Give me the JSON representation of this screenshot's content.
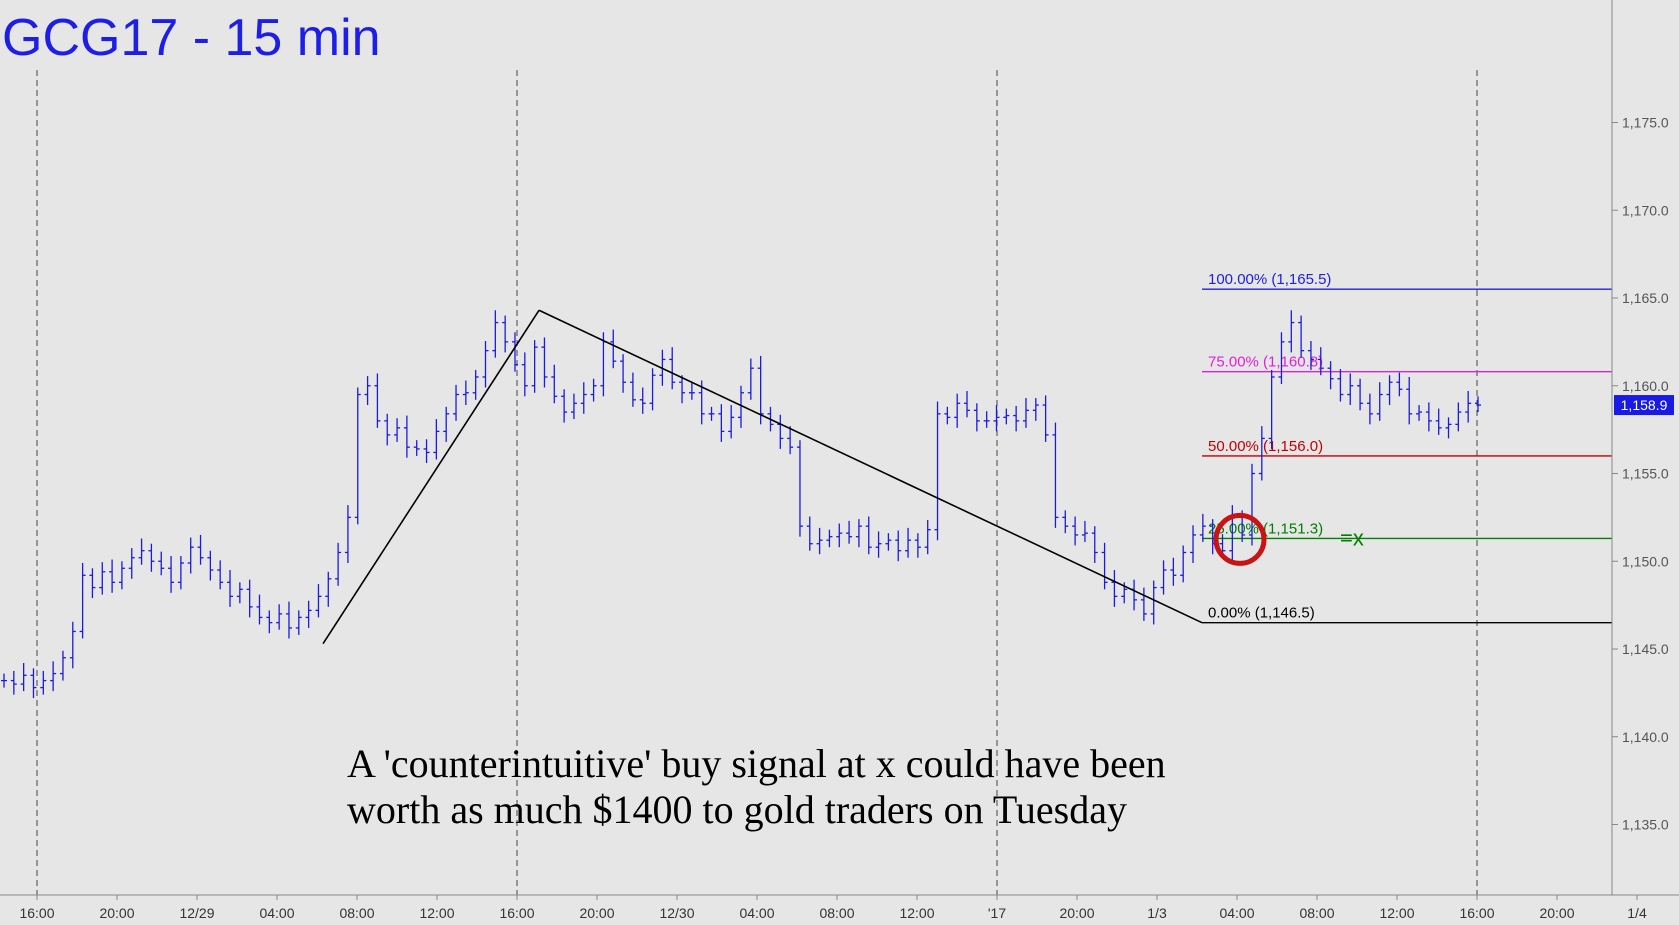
{
  "chart_data": {
    "type": "line",
    "title": "GCG17 - 15 min",
    "ylim": [
      1130,
      1180
    ],
    "y_ticks": [
      1135.0,
      1140.0,
      1145.0,
      1150.0,
      1155.0,
      1160.0,
      1165.0,
      1170.0,
      1175.0
    ],
    "y_tick_labels": [
      "1,135.0",
      "1,140.0",
      "1,145.0",
      "1,150.0",
      "1,155.0",
      "1,160.0",
      "1,165.0",
      "1,170.0",
      "1,175.0"
    ],
    "x_ticks": [
      "16:00",
      "20:00",
      "12/29",
      "04:00",
      "08:00",
      "12:00",
      "16:00",
      "20:00",
      "12/30",
      "04:00",
      "08:00",
      "12:00",
      "'17",
      "20:00",
      "1/3",
      "04:00",
      "08:00",
      "12:00",
      "16:00",
      "20:00",
      "1/4"
    ],
    "session_breaks": [
      "12/28 16:00",
      "12/29 16:00",
      "'17 16:00",
      "1/3 16:00"
    ],
    "last_price": {
      "value": 1158.9,
      "label": "1,158.9"
    },
    "series": [
      {
        "values": [
          1143.2,
          1143.0,
          1143.5,
          1142.8,
          1143.2,
          1143.6,
          1144.5,
          1146.0,
          1149.2,
          1148.5,
          1149.4,
          1148.8,
          1149.6,
          1150.2,
          1150.6,
          1150.0,
          1149.6,
          1148.8,
          1149.9,
          1150.8,
          1150.2,
          1149.5,
          1148.8,
          1148.0,
          1148.4,
          1147.4,
          1146.8,
          1146.5,
          1147.0,
          1146.2,
          1146.8,
          1147.2,
          1148.0,
          1149.0,
          1150.5,
          1152.5,
          1159.5,
          1160.0,
          1158.0,
          1157.2,
          1157.6,
          1156.5,
          1156.4,
          1156.2,
          1157.4,
          1158.4,
          1159.5,
          1159.6,
          1160.5,
          1162.0,
          1163.6,
          1162.5,
          1161.2,
          1160.0,
          1162.2,
          1160.5,
          1159.4,
          1158.5,
          1159.0,
          1159.5,
          1160.0,
          1162.5,
          1161.4,
          1160.2,
          1159.2,
          1159.0,
          1160.6,
          1161.5,
          1160.2,
          1159.6,
          1159.6,
          1158.4,
          1158.4,
          1157.4,
          1158.2,
          1159.6,
          1161.0,
          1158.4,
          1157.8,
          1157.0,
          1156.5,
          1152.0,
          1151.0,
          1151.2,
          1151.4,
          1151.6,
          1151.4,
          1152.0,
          1150.8,
          1151.0,
          1151.2,
          1150.6,
          1151.2,
          1150.8,
          1151.8,
          1158.4,
          1158.2,
          1159.0,
          1158.6,
          1158.0,
          1158.0,
          1158.2,
          1158.3,
          1158.0,
          1158.6,
          1158.9,
          1157.2,
          1152.5,
          1152.0,
          1151.5,
          1151.6,
          1150.5,
          1148.8,
          1148.0,
          1148.4,
          1147.8,
          1147.0,
          1148.5,
          1149.5,
          1149.2,
          1150.5,
          1151.5,
          1152.0,
          1151.0,
          1150.6,
          1152.5,
          1151.5,
          1155.0,
          1157.0,
          1160.5,
          1162.5,
          1163.6,
          1162.0,
          1161.5,
          1161.0,
          1160.4,
          1159.5,
          1160.0,
          1159.0,
          1158.4,
          1159.5,
          1160.2,
          1159.8,
          1158.4,
          1158.5,
          1158.0,
          1157.6,
          1157.8,
          1158.5,
          1159.0,
          1158.9
        ]
      }
    ],
    "swing_lines": [
      {
        "from": {
          "label": "12/29 06:30",
          "y": 1145.3
        },
        "to": {
          "label": "12/29 18:30",
          "y": 1164.3
        }
      },
      {
        "from": {
          "label": "12/29 18:30",
          "y": 1164.3
        },
        "to": {
          "label": "1/3 04:30",
          "y": 1146.5
        }
      }
    ],
    "fib_levels": [
      {
        "label": "100.00% (1,165.5)",
        "value": 1165.5,
        "color": "#2020e0"
      },
      {
        "label": "75.00% (1,160.8)",
        "value": 1160.8,
        "color": "#e020e0"
      },
      {
        "label": "50.00% (1,156.0)",
        "value": 1156.0,
        "color": "#c00000"
      },
      {
        "label": "25.00% (1,151.3)",
        "value": 1151.3,
        "color": "#008000"
      },
      {
        "label": "0.00% (1,146.5)",
        "value": 1146.5,
        "color": "#000000"
      }
    ],
    "marker": {
      "label": "=x",
      "color": "#008000",
      "circle_color": "#c81414"
    },
    "annotation": [
      "A 'counterintuitive' buy signal at x could have been",
      "worth as much $1400 to gold traders on Tuesday"
    ],
    "colors": {
      "bars": "#1a1ae6",
      "background": "#e6e6e6",
      "axis": "#888888"
    }
  }
}
